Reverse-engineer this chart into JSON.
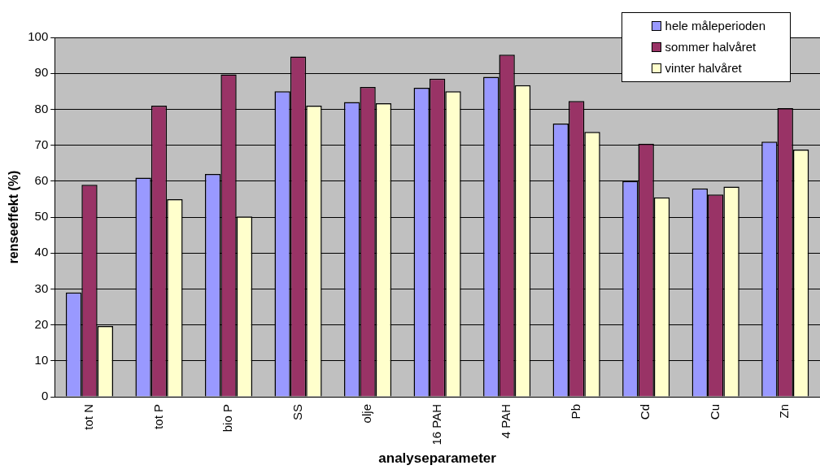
{
  "chart_data": {
    "type": "bar",
    "xlabel": "analyseparameter",
    "ylabel": "renseeffekt (%)",
    "categories": [
      "tot N",
      "tot P",
      "bio P",
      "SS",
      "olje",
      "16 PAH",
      "4 PAH",
      "Pb",
      "Cd",
      "Cu",
      "Zn"
    ],
    "series": [
      {
        "name": "hele måleperioden",
        "color": "#9999ff",
        "values": [
          29,
          61,
          62,
          85,
          82,
          86,
          89,
          76,
          60,
          58,
          71
        ]
      },
      {
        "name": "sommer halvåret",
        "color": "#993366",
        "values": [
          59,
          81,
          89.7,
          94.7,
          86.2,
          88.5,
          95.2,
          82.3,
          70.4,
          56.3,
          80.3
        ]
      },
      {
        "name": "vinter halvåret",
        "color": "#ffffcc",
        "values": [
          19.7,
          55,
          50.2,
          81,
          81.7,
          85,
          86.7,
          73.7,
          55.5,
          58.5,
          68.8
        ]
      }
    ],
    "ylim": [
      0,
      100
    ],
    "yticks": [
      0,
      10,
      20,
      30,
      40,
      50,
      60,
      70,
      80,
      90,
      100
    ],
    "grid": "y",
    "legend": "top right"
  }
}
